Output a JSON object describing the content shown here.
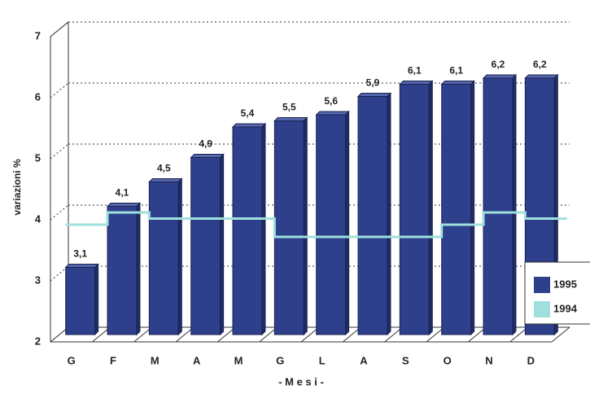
{
  "chart_data": {
    "type": "bar",
    "y_label": "variazioni %",
    "x_label": "- M e s i -",
    "categories": [
      "G",
      "F",
      "M",
      "A",
      "M",
      "G",
      "L",
      "A",
      "S",
      "O",
      "N",
      "D"
    ],
    "series": [
      {
        "name": "1995",
        "color": "#2e3f8c",
        "values": [
          3.1,
          4.1,
          4.5,
          4.9,
          5.4,
          5.5,
          5.6,
          5.9,
          6.1,
          6.1,
          6.2,
          6.2
        ],
        "value_labels": [
          "3,1",
          "4,1",
          "4,5",
          "4,9",
          "5,4",
          "5,5",
          "5,6",
          "5,9",
          "6,1",
          "6,1",
          "6,2",
          "6,2"
        ]
      },
      {
        "name": "1994",
        "type": "step",
        "color": "#9fe0dc",
        "values": [
          3.8,
          4.0,
          3.9,
          3.9,
          3.9,
          3.6,
          3.6,
          3.6,
          3.6,
          3.8,
          4.0,
          3.9
        ]
      }
    ],
    "ylim": [
      2,
      7
    ],
    "yticks": [
      2,
      3,
      4,
      5,
      6,
      7
    ],
    "grid": true,
    "legend": "lower right"
  }
}
